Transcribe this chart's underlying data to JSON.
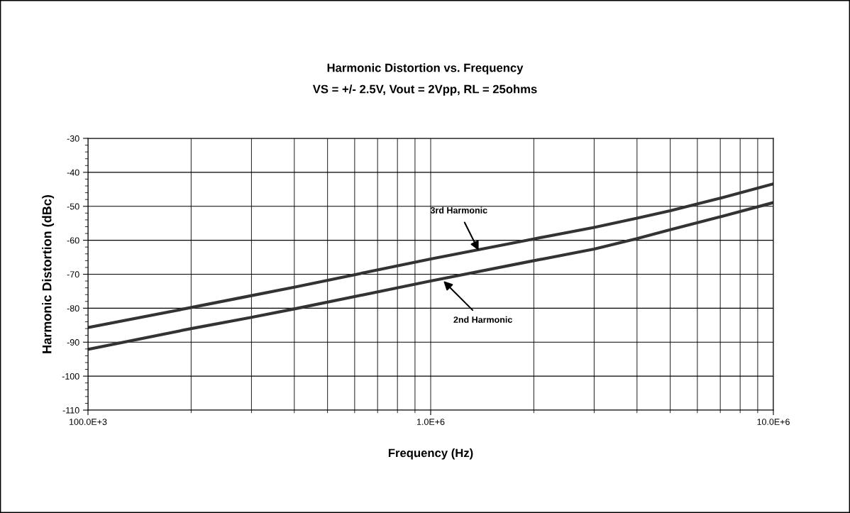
{
  "chart_data": {
    "type": "line",
    "title": "Harmonic Distortion vs. Frequency",
    "subtitle": "VS = +/- 2.5V, Vout = 2Vpp, RL = 25ohms",
    "xlabel": "Frequency (Hz)",
    "ylabel": "Harmonic Distortion (dBc)",
    "log": "x",
    "grid": true,
    "marker": "none",
    "line_style": "solid",
    "xlim": [
      100000,
      10000000
    ],
    "xticks": [
      {
        "value": 100000,
        "label": "100.0E+3"
      },
      {
        "value": 1000000,
        "label": "1.0E+6"
      },
      {
        "value": 10000000,
        "label": "10.0E+6"
      }
    ],
    "ylim": [
      -110,
      -30
    ],
    "yticks": [
      -110,
      -100,
      -90,
      -80,
      -70,
      -60,
      -50,
      -40,
      -30
    ],
    "series": [
      {
        "color": "#333333",
        "x": [
          100000,
          200000,
          300000,
          400000,
          1000000,
          2000000,
          3000000,
          4000000,
          5000000,
          7000000,
          10000000
        ],
        "values": [
          -85.7,
          -79.8,
          -76.3,
          -73.8,
          -65.5,
          -59.6,
          -56.2,
          -53.5,
          -51.3,
          -47.6,
          -43.4
        ]
      },
      {
        "color": "#333333",
        "x": [
          100000,
          200000,
          300000,
          400000,
          1000000,
          2000000,
          3000000,
          4000000,
          5000000,
          7000000,
          10000000
        ],
        "values": [
          -92.1,
          -86.0,
          -82.7,
          -80.2,
          -72.0,
          -66.0,
          -62.6,
          -59.5,
          -56.9,
          -53.1,
          -48.9
        ]
      }
    ],
    "annotations": [
      {
        "text": "3rd Harmonic",
        "x": 1380000,
        "y": -63
      },
      {
        "text": "2nd Harmonic",
        "x": 1090000,
        "y": -72
      }
    ]
  }
}
